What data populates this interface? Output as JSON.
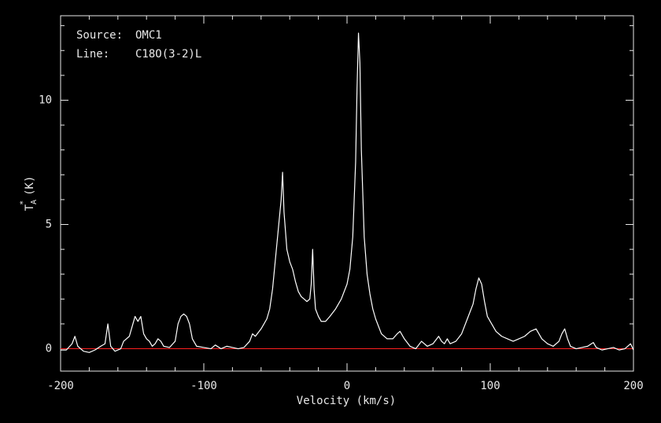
{
  "chart_data": {
    "type": "line",
    "annotations": [
      {
        "label": "Source:",
        "text": "OMC1"
      },
      {
        "label": "Line:",
        "text": "C18O(3-2)L"
      }
    ],
    "xlabel": "Velocity (km/s)",
    "ylabel": {
      "base": "T",
      "sub": "A",
      "sup": "*",
      "unit": "(K)"
    },
    "xlim": [
      -200,
      200
    ],
    "ylim": [
      -0.9,
      13.4
    ],
    "xticks": [
      -200,
      -100,
      0,
      100,
      200
    ],
    "yticks": [
      0,
      5,
      10
    ],
    "xminorticks": [
      -180,
      -160,
      -140,
      -120,
      -80,
      -60,
      -40,
      -20,
      20,
      40,
      60,
      80,
      120,
      140,
      160,
      180
    ],
    "yminorticks": [
      1,
      2,
      3,
      4,
      6,
      7,
      8,
      9,
      11,
      12,
      13
    ],
    "baseline": {
      "value": 0,
      "color": "#ff2020"
    },
    "series": [
      {
        "color": "#ffffff",
        "x": [
          -200,
          -196,
          -192,
          -190,
          -188,
          -184,
          -180,
          -176,
          -172,
          -169,
          -167,
          -165,
          -162,
          -158,
          -156,
          -154,
          -152,
          -150,
          -148,
          -146,
          -144,
          -142,
          -140,
          -138,
          -136,
          -134,
          -132,
          -130,
          -128,
          -124,
          -120,
          -118,
          -116,
          -114,
          -112,
          -110,
          -108,
          -105,
          -100,
          -95,
          -92,
          -88,
          -84,
          -80,
          -76,
          -72,
          -68,
          -66,
          -64,
          -60,
          -56,
          -54,
          -52,
          -50,
          -48,
          -46,
          -45,
          -44,
          -42,
          -40,
          -38,
          -36,
          -34,
          -32,
          -30,
          -28,
          -26,
          -25,
          -24,
          -23,
          -22,
          -20,
          -18,
          -15,
          -12,
          -8,
          -4,
          0,
          2,
          4,
          6,
          7,
          8,
          9,
          10,
          12,
          14,
          16,
          18,
          20,
          24,
          28,
          32,
          35,
          37,
          40,
          44,
          48,
          52,
          56,
          60,
          64,
          66,
          68,
          70,
          72,
          76,
          80,
          84,
          86,
          88,
          90,
          92,
          94,
          96,
          98,
          100,
          104,
          108,
          112,
          116,
          120,
          124,
          128,
          132,
          134,
          136,
          140,
          144,
          148,
          150,
          152,
          154,
          156,
          160,
          164,
          168,
          172,
          174,
          178,
          182,
          186,
          190,
          194,
          198,
          200
        ],
        "values": [
          -0.05,
          -0.05,
          0.2,
          0.5,
          0.1,
          -0.1,
          -0.15,
          -0.05,
          0.1,
          0.2,
          1.0,
          0.1,
          -0.1,
          0.0,
          0.3,
          0.4,
          0.5,
          0.9,
          1.3,
          1.1,
          1.3,
          0.6,
          0.4,
          0.3,
          0.1,
          0.2,
          0.4,
          0.3,
          0.1,
          0.05,
          0.3,
          1.0,
          1.3,
          1.4,
          1.3,
          1.0,
          0.4,
          0.1,
          0.05,
          0.0,
          0.15,
          0.0,
          0.1,
          0.05,
          0.0,
          0.05,
          0.3,
          0.6,
          0.5,
          0.8,
          1.2,
          1.6,
          2.4,
          3.6,
          4.8,
          6.0,
          7.1,
          5.5,
          4.0,
          3.5,
          3.2,
          2.7,
          2.3,
          2.1,
          2.0,
          1.9,
          2.0,
          2.6,
          4.0,
          2.4,
          1.6,
          1.3,
          1.1,
          1.1,
          1.3,
          1.6,
          2.0,
          2.6,
          3.2,
          4.5,
          7.5,
          10.5,
          12.7,
          11.5,
          8.0,
          4.5,
          3.0,
          2.2,
          1.6,
          1.2,
          0.6,
          0.4,
          0.4,
          0.6,
          0.7,
          0.4,
          0.1,
          0.0,
          0.3,
          0.1,
          0.2,
          0.5,
          0.3,
          0.2,
          0.4,
          0.2,
          0.3,
          0.6,
          1.2,
          1.5,
          1.8,
          2.4,
          2.85,
          2.6,
          1.9,
          1.3,
          1.1,
          0.7,
          0.5,
          0.4,
          0.3,
          0.4,
          0.5,
          0.7,
          0.8,
          0.6,
          0.4,
          0.2,
          0.1,
          0.3,
          0.6,
          0.8,
          0.4,
          0.1,
          0.0,
          0.05,
          0.1,
          0.25,
          0.05,
          -0.05,
          0.0,
          0.05,
          -0.05,
          0.0,
          0.2,
          -0.05
        ]
      }
    ]
  }
}
